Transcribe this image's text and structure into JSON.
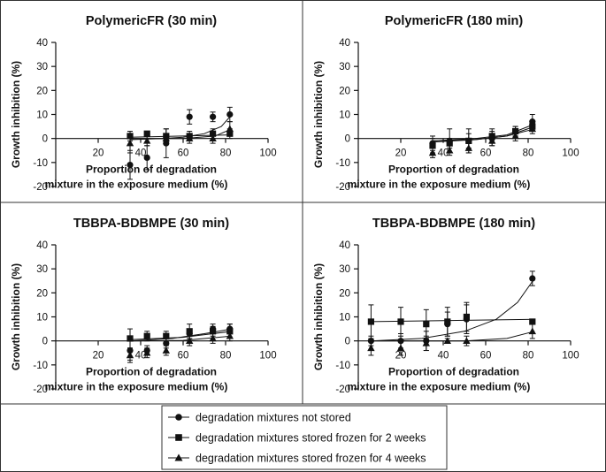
{
  "legend": {
    "items": [
      {
        "label": "degradation mixtures not stored",
        "marker": "circle"
      },
      {
        "label": "degradation mixtures stored frozen for 2 weeks",
        "marker": "square"
      },
      {
        "label": "degradation mixtures stored frozen for 4 weeks",
        "marker": "triangle"
      }
    ]
  },
  "chart_data": [
    {
      "type": "scatter",
      "title": "PolymericFR (30 min)",
      "ylabel": "Growth inhibition (%)",
      "xlabel_line1": "Proportion of degradation",
      "xlabel_line2": "mixture in the exposure medium (%)",
      "xlim": [
        0,
        100
      ],
      "ylim": [
        -20,
        40
      ],
      "xticks": [
        "20",
        "40",
        "60",
        "80",
        "100"
      ],
      "yticks": [
        "-20",
        "-10",
        "0",
        "10",
        "20",
        "30",
        "40"
      ],
      "series": [
        {
          "name": "degradation mixtures not stored",
          "marker": "circle",
          "points": [
            [
              35,
              -11,
              6
            ],
            [
              43,
              -8,
              5
            ],
            [
              52,
              -2,
              6
            ],
            [
              63,
              9,
              3
            ],
            [
              74,
              9,
              2
            ],
            [
              82,
              10,
              3
            ]
          ],
          "fit": [
            [
              35,
              -0.5
            ],
            [
              50,
              0
            ],
            [
              60,
              0.5
            ],
            [
              70,
              2
            ],
            [
              78,
              5
            ],
            [
              83,
              10
            ]
          ]
        },
        {
          "name": "degradation mixtures stored frozen for 2 weeks",
          "marker": "square",
          "points": [
            [
              35,
              1,
              2
            ],
            [
              43,
              2,
              1
            ],
            [
              52,
              1,
              3
            ],
            [
              63,
              1,
              2
            ],
            [
              74,
              2,
              2
            ],
            [
              82,
              2,
              2
            ]
          ],
          "fit": [
            [
              35,
              0.5
            ],
            [
              83,
              1.5
            ]
          ]
        },
        {
          "name": "degradation mixtures stored frozen for 4 weeks",
          "marker": "triangle",
          "points": [
            [
              35,
              -2,
              4
            ],
            [
              43,
              -1,
              2
            ],
            [
              52,
              0,
              2
            ],
            [
              63,
              0,
              2
            ],
            [
              74,
              0,
              2
            ],
            [
              82,
              4,
              3
            ]
          ],
          "fit": [
            [
              35,
              0
            ],
            [
              60,
              0
            ],
            [
              75,
              1
            ],
            [
              83,
              4
            ]
          ]
        }
      ]
    },
    {
      "type": "scatter",
      "title": "PolymericFR (180 min)",
      "ylabel": "Growth inhibition (%)",
      "xlabel_line1": "Proportion of degradation",
      "xlabel_line2": "mixture in the exposure medium (%)",
      "xlim": [
        0,
        100
      ],
      "ylim": [
        -20,
        40
      ],
      "xticks": [
        "20",
        "40",
        "60",
        "80",
        "100"
      ],
      "yticks": [
        "-20",
        "-10",
        "0",
        "10",
        "20",
        "30",
        "40"
      ],
      "series": [
        {
          "name": "degradation mixtures not stored",
          "marker": "circle",
          "points": [
            [
              35,
              -2,
              3
            ],
            [
              43,
              -1,
              5
            ],
            [
              52,
              -1,
              5
            ],
            [
              63,
              0,
              3
            ],
            [
              74,
              3,
              2
            ],
            [
              82,
              7,
              3
            ]
          ],
          "fit": [
            [
              35,
              -1
            ],
            [
              55,
              0
            ],
            [
              70,
              1.5
            ],
            [
              83,
              6
            ]
          ]
        },
        {
          "name": "degradation mixtures stored frozen for 2 weeks",
          "marker": "square",
          "points": [
            [
              35,
              -3,
              3
            ],
            [
              43,
              -2,
              2
            ],
            [
              52,
              -1,
              3
            ],
            [
              63,
              1,
              3
            ],
            [
              74,
              3,
              2
            ],
            [
              82,
              5,
              2
            ]
          ],
          "fit": [
            [
              35,
              -1.5
            ],
            [
              55,
              -0.5
            ],
            [
              70,
              1
            ],
            [
              83,
              5
            ]
          ]
        },
        {
          "name": "degradation mixtures stored frozen for 4 weeks",
          "marker": "triangle",
          "points": [
            [
              35,
              -6,
              2
            ],
            [
              43,
              -5,
              2
            ],
            [
              52,
              -4,
              2
            ],
            [
              63,
              -1,
              2
            ],
            [
              74,
              1,
              2
            ],
            [
              82,
              4,
              2
            ]
          ],
          "fit": [
            [
              35,
              -1
            ],
            [
              55,
              -0.5
            ],
            [
              70,
              1
            ],
            [
              83,
              4
            ]
          ]
        }
      ]
    },
    {
      "type": "scatter",
      "title": "TBBPA-BDBMPE (30 min)",
      "ylabel": "Growth inhibition (%)",
      "xlabel_line1": "Proportion of degradation",
      "xlabel_line2": "mixture in the exposure medium (%)",
      "xlim": [
        0,
        100
      ],
      "ylim": [
        -20,
        40
      ],
      "xticks": [
        "20",
        "40",
        "60",
        "80",
        "100"
      ],
      "yticks": [
        "-20",
        "-10",
        "0",
        "10",
        "20",
        "30",
        "40"
      ],
      "series": [
        {
          "name": "degradation mixtures not stored",
          "marker": "circle",
          "points": [
            [
              35,
              -4,
              4
            ],
            [
              43,
              -4,
              2
            ],
            [
              52,
              -1,
              2
            ],
            [
              63,
              3,
              2
            ],
            [
              74,
              5,
              2
            ],
            [
              82,
              5,
              2
            ]
          ],
          "fit": [
            [
              35,
              0
            ],
            [
              55,
              1
            ],
            [
              70,
              3
            ],
            [
              83,
              5
            ]
          ]
        },
        {
          "name": "degradation mixtures stored frozen for 2 weeks",
          "marker": "square",
          "points": [
            [
              35,
              1,
              4
            ],
            [
              43,
              2,
              2
            ],
            [
              52,
              2,
              2
            ],
            [
              63,
              4,
              3
            ],
            [
              74,
              4,
              2
            ],
            [
              82,
              4,
              3
            ]
          ],
          "fit": [
            [
              35,
              0.5
            ],
            [
              60,
              1.5
            ],
            [
              83,
              4
            ]
          ]
        },
        {
          "name": "degradation mixtures stored frozen for 4 weeks",
          "marker": "triangle",
          "points": [
            [
              35,
              -6,
              3
            ],
            [
              43,
              -5,
              2
            ],
            [
              52,
              -4,
              2
            ],
            [
              63,
              0,
              2
            ],
            [
              74,
              1,
              2
            ],
            [
              82,
              2,
              2
            ]
          ],
          "fit": [
            [
              35,
              0
            ],
            [
              60,
              0.2
            ],
            [
              83,
              2
            ]
          ]
        }
      ]
    },
    {
      "type": "scatter",
      "title": "TBBPA-BDBMPE (180 min)",
      "ylabel": "Growth inhibition (%)",
      "xlabel_line1": "Proportion of degradation",
      "xlabel_line2": "mixture in the exposure medium (%)",
      "xlim": [
        0,
        100
      ],
      "ylim": [
        -20,
        40
      ],
      "xticks": [
        "20",
        "40",
        "60",
        "80",
        "100"
      ],
      "yticks": [
        "-20",
        "-10",
        "0",
        "10",
        "20",
        "30",
        "40"
      ],
      "series": [
        {
          "name": "degradation mixtures not stored",
          "marker": "circle",
          "points": [
            [
              6,
              0,
              2
            ],
            [
              20,
              0,
              3
            ],
            [
              32,
              0,
              4
            ],
            [
              42,
              7,
              5
            ],
            [
              51,
              9,
              6
            ],
            [
              82,
              26,
              3
            ]
          ],
          "fit": [
            [
              6,
              0
            ],
            [
              30,
              1
            ],
            [
              50,
              4
            ],
            [
              65,
              9
            ],
            [
              75,
              16
            ],
            [
              83,
              26
            ]
          ]
        },
        {
          "name": "degradation mixtures stored frozen for 2 weeks",
          "marker": "square",
          "points": [
            [
              6,
              8,
              7
            ],
            [
              20,
              8,
              6
            ],
            [
              32,
              7,
              6
            ],
            [
              42,
              8,
              6
            ],
            [
              51,
              10,
              6
            ],
            [
              82,
              8,
              1
            ]
          ],
          "fit": [
            [
              6,
              8
            ],
            [
              83,
              9
            ]
          ]
        },
        {
          "name": "degradation mixtures stored frozen for 4 weeks",
          "marker": "triangle",
          "points": [
            [
              6,
              -3,
              3
            ],
            [
              20,
              -3,
              3
            ],
            [
              32,
              -1,
              3
            ],
            [
              42,
              0,
              1
            ],
            [
              51,
              0,
              2
            ],
            [
              82,
              4,
              3
            ]
          ],
          "fit": [
            [
              6,
              0
            ],
            [
              50,
              0
            ],
            [
              70,
              1
            ],
            [
              83,
              4
            ]
          ]
        }
      ]
    }
  ]
}
